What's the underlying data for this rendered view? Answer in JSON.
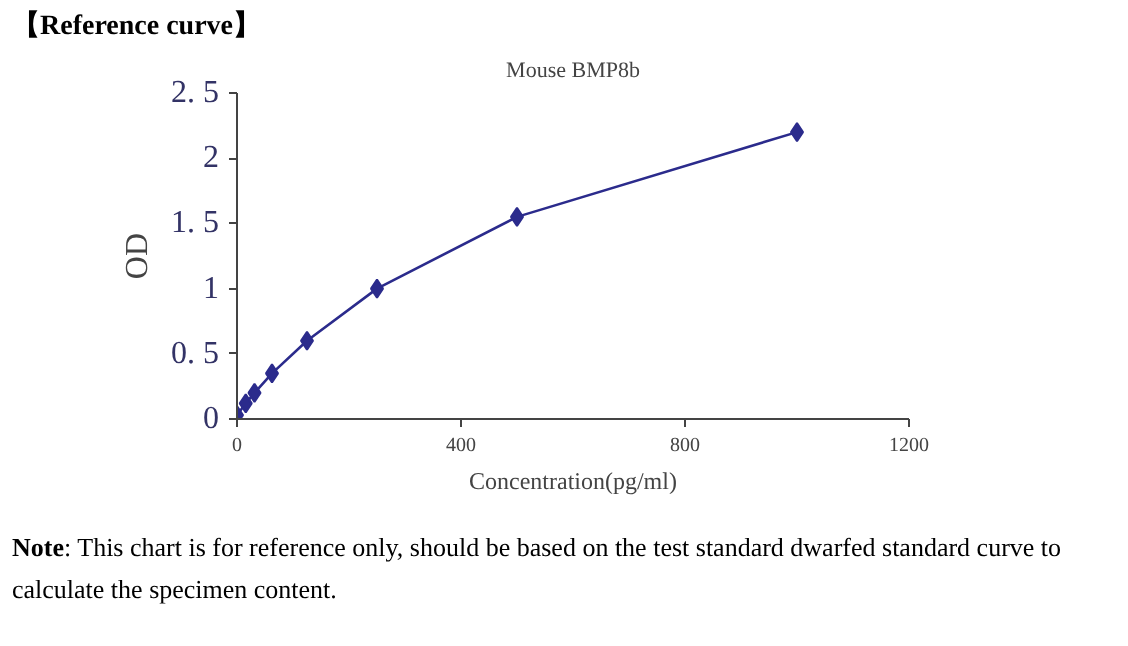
{
  "chart_data": {
    "type": "line",
    "title": "【Reference curve】",
    "subtitle": "Mouse BMP8b",
    "xlabel": "Concentration(pg/ml)",
    "ylabel": "OD",
    "x": [
      0,
      15.6,
      31.25,
      62.5,
      125,
      250,
      500,
      1000
    ],
    "series": [
      {
        "color": "#2b2b8c",
        "values": [
          0.03,
          0.12,
          0.2,
          0.35,
          0.6,
          1.0,
          1.55,
          2.2
        ]
      }
    ],
    "xlim": [
      0,
      1200
    ],
    "xticks": [
      0,
      400,
      800,
      1200
    ],
    "ylim": [
      0,
      2.5
    ],
    "yticks": [
      0,
      {
        "value": 0.5,
        "label": "0. 5"
      },
      1,
      {
        "value": 1.5,
        "label": "1. 5"
      },
      2,
      {
        "value": 2.5,
        "label": "2. 5"
      }
    ],
    "grid": false,
    "marker": "diamond",
    "line_style": "solid",
    "annotations": [
      "Note: This chart is for reference only, should be based on the test standard dwarfed standard curve to calculate the specimen content."
    ]
  }
}
